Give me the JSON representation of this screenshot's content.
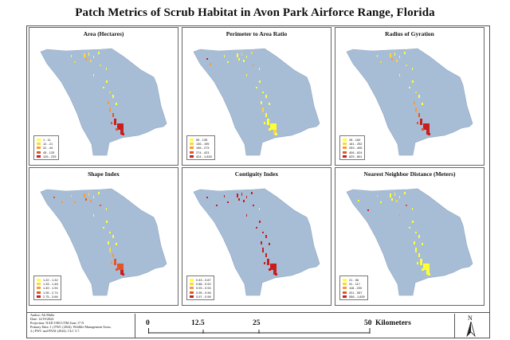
{
  "title": "Patch Metrics of Scrub Habitat in Avon Park Airforce Range, Florida",
  "colors": {
    "water": "#a7bdd6",
    "c1": "#ffff33",
    "c2": "#fdd63a",
    "c3": "#f89a3a",
    "c4": "#e4552b",
    "c5": "#c81e1e"
  },
  "panels": [
    {
      "title": "Area (Hectares)",
      "legend": [
        "1 - 11",
        "12 - 21",
        "22 - 44",
        "45 - 125",
        "126 - 233"
      ]
    },
    {
      "title": "Perimeter to Area Ratio",
      "legend": [
        "55 - 135",
        "136 - 195",
        "196 - 273",
        "274 - 423",
        "424 - 1,818"
      ]
    },
    {
      "title": "Radius of Gyration",
      "legend": [
        "28 - 160",
        "161 - 252",
        "253 - 405",
        "406 - 624",
        "625 - 801"
      ]
    },
    {
      "title": "Shape Index",
      "legend": [
        "1.22 - 1.32",
        "1.33 - 1.48",
        "1.49 - 1.94",
        "1.95 - 2.74",
        "2.75 - 3.66"
      ]
    },
    {
      "title": "Contiguity Index",
      "legend": [
        "0.43 - 0.87",
        "0.88 - 0.92",
        "0.93 - 0.94",
        "0.95 - 0.96",
        "0.97 - 0.98"
      ]
    },
    {
      "title": "Nearest Neighbor Distance (Meters)",
      "legend": [
        "21 - 56",
        "91 - 117",
        "118 - 200",
        "201 - 557",
        "558 - 1,839"
      ]
    }
  ],
  "author": {
    "line1": "Author: Ali Mulla",
    "line2": "Date: 12/19/2024",
    "line3": "Projection: NAD 1983 UTM Zone 17 N",
    "line4": "Primary Data: 1.) FWC (2024). Wildlife Management Areas.",
    "line5": "2.) FWC and FNAI (2024). CLC 3.7."
  },
  "scale": {
    "t0": "0",
    "t1": "12.5",
    "t2": "25",
    "t3": "50",
    "unit": "Kilometers"
  },
  "north": {
    "label": "N"
  }
}
